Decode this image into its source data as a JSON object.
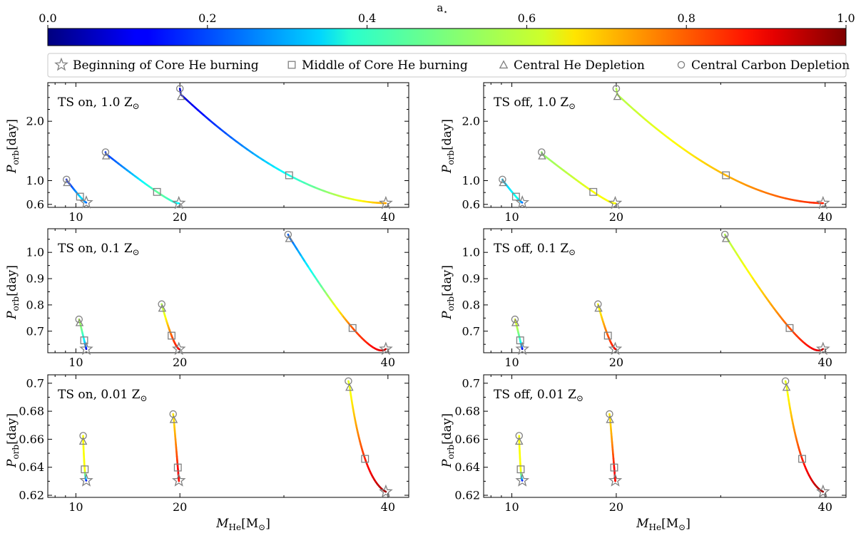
{
  "colorbar": {
    "label": "a",
    "label_sub": "⋆",
    "ticks": [
      "0.0",
      "0.2",
      "0.4",
      "0.6",
      "0.8",
      "1.0"
    ],
    "range": [
      0,
      1
    ],
    "colormap": "jet"
  },
  "legend": {
    "entries": [
      {
        "label": "Beginning of Core He burning",
        "marker": "star"
      },
      {
        "label": "Middle of Core He burning",
        "marker": "square"
      },
      {
        "label": "Central He Depletion",
        "marker": "triangle"
      },
      {
        "label": "Central Carbon Depletion",
        "marker": "circle"
      }
    ]
  },
  "axes": {
    "ylabel_main": "P",
    "ylabel_sub": "orb",
    "ylabel_unit": "[day]",
    "xlabel_main": "M",
    "xlabel_sub": "He",
    "xlabel_unit": "[M",
    "xlabel_sun": "⊙",
    "xlabel_close": "]",
    "xticks": [
      "10",
      "20",
      "40"
    ],
    "marker_color": "#808080"
  },
  "chart_data": [
    {
      "type": "line",
      "title_prefix": "TS on, ",
      "title_z": "1.0 Z",
      "title_sun": "⊙",
      "ylim": [
        0.55,
        2.65
      ],
      "yticks": [
        0.6,
        1.0,
        2.0
      ],
      "ytick_labels": [
        "0.6",
        "1.0",
        "2.0"
      ],
      "tracks": [
        {
          "start": [
            11.0,
            0.63
          ],
          "middle": [
            10.4,
            0.73
          ],
          "he_dep": [
            9.15,
            1.0
          ],
          "c_dep": [
            9.1,
            1.02
          ],
          "a_start": 0.2,
          "a_mid": 0.35,
          "a_end": 0.15
        },
        {
          "start": [
            19.9,
            0.62
          ],
          "middle": [
            17.8,
            0.81
          ],
          "he_dep": [
            12.9,
            1.45
          ],
          "c_dep": [
            12.85,
            1.48
          ],
          "a_start": 0.35,
          "a_mid": 0.48,
          "a_end": 0.18
        },
        {
          "start": [
            39.8,
            0.62
          ],
          "middle": [
            30.5,
            1.09
          ],
          "he_dep": [
            20.1,
            2.45
          ],
          "c_dep": [
            20.0,
            2.55
          ],
          "a_start": 0.72,
          "a_mid": 0.4,
          "a_end": 0.08
        }
      ]
    },
    {
      "type": "line",
      "title_prefix": "TS off, ",
      "title_z": "1.0 Z",
      "title_sun": "⊙",
      "ylim": [
        0.55,
        2.65
      ],
      "yticks": [
        0.6,
        1.0,
        2.0
      ],
      "ytick_labels": [
        "0.6",
        "1.0",
        "2.0"
      ],
      "tracks": [
        {
          "start": [
            11.0,
            0.63
          ],
          "middle": [
            10.4,
            0.73
          ],
          "he_dep": [
            9.15,
            1.0
          ],
          "c_dep": [
            9.1,
            1.02
          ],
          "a_start": 0.2,
          "a_mid": 0.4,
          "a_end": 0.32
        },
        {
          "start": [
            19.9,
            0.62
          ],
          "middle": [
            17.8,
            0.81
          ],
          "he_dep": [
            12.9,
            1.45
          ],
          "c_dep": [
            12.85,
            1.48
          ],
          "a_start": 0.62,
          "a_mid": 0.62,
          "a_end": 0.52
        },
        {
          "start": [
            39.8,
            0.62
          ],
          "middle": [
            30.5,
            1.09
          ],
          "he_dep": [
            20.1,
            2.45
          ],
          "c_dep": [
            20.0,
            2.55
          ],
          "a_start": 0.85,
          "a_mid": 0.7,
          "a_end": 0.55
        }
      ]
    },
    {
      "type": "line",
      "title_prefix": "TS on, ",
      "title_z": "0.1 Z",
      "title_sun": "⊙",
      "ylim": [
        0.618,
        1.09
      ],
      "yticks": [
        0.7,
        0.8,
        0.9,
        1.0
      ],
      "ytick_labels": [
        "0.7",
        "0.8",
        "0.9",
        "1.0"
      ],
      "tracks": [
        {
          "start": [
            11.0,
            0.632
          ],
          "middle": [
            10.8,
            0.665
          ],
          "he_dep": [
            10.35,
            0.74
          ],
          "c_dep": [
            10.3,
            0.745
          ],
          "a_start": 0.05,
          "a_mid": 0.35,
          "a_end": 0.55
        },
        {
          "start": [
            19.9,
            0.632
          ],
          "middle": [
            19.2,
            0.683
          ],
          "he_dep": [
            18.3,
            0.795
          ],
          "c_dep": [
            18.25,
            0.803
          ],
          "a_start": 0.88,
          "a_mid": 0.8,
          "a_end": 0.55
        },
        {
          "start": [
            39.8,
            0.632
          ],
          "middle": [
            36.6,
            0.712
          ],
          "he_dep": [
            30.5,
            1.06
          ],
          "c_dep": [
            30.4,
            1.068
          ],
          "a_start": 0.95,
          "a_mid": 0.8,
          "a_end": 0.22
        }
      ]
    },
    {
      "type": "line",
      "title_prefix": "TS off, ",
      "title_z": "0.1 Z",
      "title_sun": "⊙",
      "ylim": [
        0.618,
        1.09
      ],
      "yticks": [
        0.7,
        0.8,
        0.9,
        1.0
      ],
      "ytick_labels": [
        "0.7",
        "0.8",
        "0.9",
        "1.0"
      ],
      "tracks": [
        {
          "start": [
            11.0,
            0.632
          ],
          "middle": [
            10.8,
            0.665
          ],
          "he_dep": [
            10.35,
            0.74
          ],
          "c_dep": [
            10.3,
            0.745
          ],
          "a_start": 0.05,
          "a_mid": 0.4,
          "a_end": 0.6
        },
        {
          "start": [
            19.9,
            0.632
          ],
          "middle": [
            19.2,
            0.683
          ],
          "he_dep": [
            18.3,
            0.795
          ],
          "c_dep": [
            18.25,
            0.803
          ],
          "a_start": 0.88,
          "a_mid": 0.8,
          "a_end": 0.62
        },
        {
          "start": [
            39.8,
            0.632
          ],
          "middle": [
            36.6,
            0.712
          ],
          "he_dep": [
            30.5,
            1.06
          ],
          "c_dep": [
            30.4,
            1.068
          ],
          "a_start": 0.95,
          "a_mid": 0.8,
          "a_end": 0.55
        }
      ]
    },
    {
      "type": "line",
      "title_prefix": "TS on, ",
      "title_z": "0.01 Z",
      "title_sun": "⊙",
      "ylim": [
        0.6185,
        0.706
      ],
      "yticks": [
        0.62,
        0.64,
        0.66,
        0.68,
        0.7
      ],
      "ytick_labels": [
        "0.62",
        "0.64",
        "0.66",
        "0.68",
        "0.7"
      ],
      "tracks": [
        {
          "start": [
            11.0,
            0.6305
          ],
          "middle": [
            10.85,
            0.6385
          ],
          "he_dep": [
            10.7,
            0.66
          ],
          "c_dep": [
            10.7,
            0.6625
          ],
          "a_start": 0.05,
          "a_mid": 0.62,
          "a_end": 0.62
        },
        {
          "start": [
            19.9,
            0.6305
          ],
          "middle": [
            19.8,
            0.6398
          ],
          "he_dep": [
            19.4,
            0.6755
          ],
          "c_dep": [
            19.35,
            0.678
          ],
          "a_start": 0.85,
          "a_mid": 0.88,
          "a_end": 0.65
        },
        {
          "start": [
            39.8,
            0.6225
          ],
          "middle": [
            37.8,
            0.646
          ],
          "he_dep": [
            36.3,
            0.6985
          ],
          "c_dep": [
            36.2,
            0.7015
          ],
          "a_start": 0.98,
          "a_mid": 0.85,
          "a_end": 0.6
        }
      ]
    },
    {
      "type": "line",
      "title_prefix": "TS off, ",
      "title_z": "0.01 Z",
      "title_sun": "⊙",
      "ylim": [
        0.6185,
        0.706
      ],
      "yticks": [
        0.62,
        0.64,
        0.66,
        0.68,
        0.7
      ],
      "ytick_labels": [
        "0.62",
        "0.64",
        "0.66",
        "0.68",
        "0.7"
      ],
      "tracks": [
        {
          "start": [
            11.0,
            0.6305
          ],
          "middle": [
            10.85,
            0.6385
          ],
          "he_dep": [
            10.7,
            0.66
          ],
          "c_dep": [
            10.7,
            0.6625
          ],
          "a_start": 0.05,
          "a_mid": 0.62,
          "a_end": 0.62
        },
        {
          "start": [
            19.9,
            0.6305
          ],
          "middle": [
            19.8,
            0.6398
          ],
          "he_dep": [
            19.4,
            0.6755
          ],
          "c_dep": [
            19.35,
            0.678
          ],
          "a_start": 0.85,
          "a_mid": 0.88,
          "a_end": 0.65
        },
        {
          "start": [
            39.8,
            0.6225
          ],
          "middle": [
            37.8,
            0.646
          ],
          "he_dep": [
            36.3,
            0.6985
          ],
          "c_dep": [
            36.2,
            0.7015
          ],
          "a_start": 0.98,
          "a_mid": 0.85,
          "a_end": 0.6
        }
      ]
    }
  ]
}
